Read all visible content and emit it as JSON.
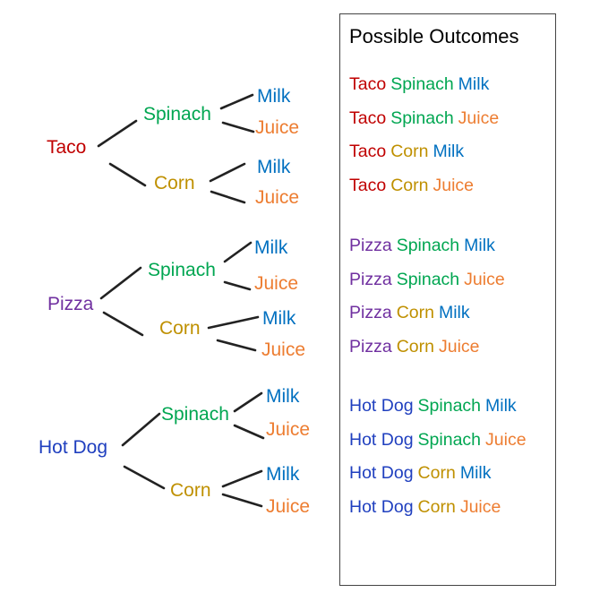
{
  "tree": {
    "mains": [
      {
        "key": "taco",
        "label": "Taco",
        "vegs": [
          {
            "key": "spinach",
            "label": "Spinach",
            "drinks": [
              {
                "key": "milk",
                "label": "Milk"
              },
              {
                "key": "juice",
                "label": "Juice"
              }
            ]
          },
          {
            "key": "corn",
            "label": "Corn",
            "drinks": [
              {
                "key": "milk",
                "label": "Milk"
              },
              {
                "key": "juice",
                "label": "Juice"
              }
            ]
          }
        ]
      },
      {
        "key": "pizza",
        "label": "Pizza",
        "vegs": [
          {
            "key": "spinach",
            "label": "Spinach",
            "drinks": [
              {
                "key": "milk",
                "label": "Milk"
              },
              {
                "key": "juice",
                "label": "Juice"
              }
            ]
          },
          {
            "key": "corn",
            "label": "Corn",
            "drinks": [
              {
                "key": "milk",
                "label": "Milk"
              },
              {
                "key": "juice",
                "label": "Juice"
              }
            ]
          }
        ]
      },
      {
        "key": "hotdog",
        "label": "Hot Dog",
        "vegs": [
          {
            "key": "spinach",
            "label": "Spinach",
            "drinks": [
              {
                "key": "milk",
                "label": "Milk"
              },
              {
                "key": "juice",
                "label": "Juice"
              }
            ]
          },
          {
            "key": "corn",
            "label": "Corn",
            "drinks": [
              {
                "key": "milk",
                "label": "Milk"
              },
              {
                "key": "juice",
                "label": "Juice"
              }
            ]
          }
        ]
      }
    ]
  },
  "outcomes": {
    "title": "Possible Outcomes",
    "groups": [
      [
        {
          "main": "Taco",
          "veg": "Spinach",
          "drink": "Milk"
        },
        {
          "main": "Taco",
          "veg": "Spinach",
          "drink": "Juice"
        },
        {
          "main": "Taco",
          "veg": "Corn",
          "drink": "Milk"
        },
        {
          "main": "Taco",
          "veg": "Corn",
          "drink": "Juice"
        }
      ],
      [
        {
          "main": "Pizza",
          "veg": "Spinach",
          "drink": "Milk"
        },
        {
          "main": "Pizza",
          "veg": "Spinach",
          "drink": "Juice"
        },
        {
          "main": "Pizza",
          "veg": "Corn",
          "drink": "Milk"
        },
        {
          "main": "Pizza",
          "veg": "Corn",
          "drink": "Juice"
        }
      ],
      [
        {
          "main": "Hot Dog",
          "veg": "Spinach",
          "drink": "Milk"
        },
        {
          "main": "Hot Dog",
          "veg": "Spinach",
          "drink": "Juice"
        },
        {
          "main": "Hot Dog",
          "veg": "Corn",
          "drink": "Milk"
        },
        {
          "main": "Hot Dog",
          "veg": "Corn",
          "drink": "Juice"
        }
      ]
    ]
  },
  "colors": {
    "taco": "#c00000",
    "pizza": "#7030a0",
    "hotdog": "#1f3fbf",
    "spinach": "#00a651",
    "corn": "#bf9000",
    "milk": "#0070c0",
    "juice": "#ed7d31",
    "line": "#222222"
  }
}
